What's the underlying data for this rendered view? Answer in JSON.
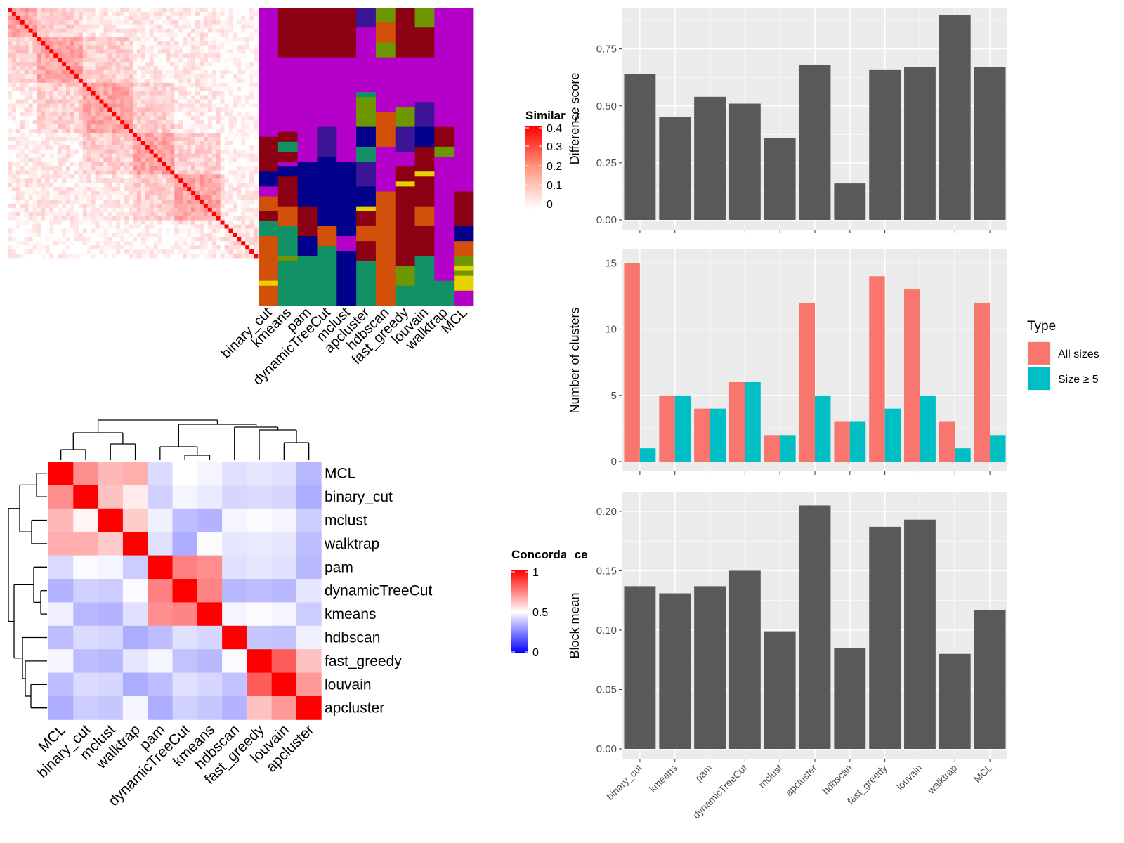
{
  "similarity_legend": {
    "title": "Similarity",
    "ticks": [
      "0.4",
      "0.3",
      "0.2",
      "0.1",
      "0"
    ],
    "colors": {
      "high": "#ff0000",
      "low": "#ffffff"
    }
  },
  "concordance_legend": {
    "title": "Concordance",
    "ticks": [
      "1",
      "0.5",
      "0"
    ],
    "colors": {
      "high": "#ff0000",
      "mid": "#ffffff",
      "low": "#0000ff"
    }
  },
  "method_columns": [
    "binary_cut",
    "kmeans",
    "pam",
    "dynamicTreeCut",
    "mclust",
    "apcluster",
    "hdbscan",
    "fast_greedy",
    "louvain",
    "walktrap",
    "MCL"
  ],
  "cluster_palette": [
    "#b400c8",
    "#8b0012",
    "#00008b",
    "#119164",
    "#d2500a",
    "#6e9600",
    "#e6d200",
    "#3c1496",
    "#a00064"
  ],
  "concordance_heatmap": {
    "rows": [
      "MCL",
      "binary_cut",
      "mclust",
      "walktrap",
      "pam",
      "dynamicTreeCut",
      "kmeans",
      "hdbscan",
      "fast_greedy",
      "louvain",
      "apcluster"
    ],
    "cols": [
      "MCL",
      "binary_cut",
      "mclust",
      "walktrap",
      "pam",
      "dynamicTreeCut",
      "kmeans",
      "hdbscan",
      "fast_greedy",
      "louvain",
      "apcluster"
    ]
  },
  "chart_data": [
    {
      "type": "bar",
      "categories": [
        "binary_cut",
        "kmeans",
        "pam",
        "dynamicTreeCut",
        "mclust",
        "apcluster",
        "hdbscan",
        "fast_greedy",
        "louvain",
        "walktrap",
        "MCL"
      ],
      "values": [
        0.64,
        0.45,
        0.54,
        0.51,
        0.36,
        0.68,
        0.16,
        0.66,
        0.67,
        0.9,
        0.67
      ],
      "ylabel": "Difference score",
      "ylim": [
        0,
        0.9
      ],
      "yticks": [
        "0.00",
        "0.25",
        "0.50",
        "0.75"
      ],
      "color": "#595959",
      "grid": true
    },
    {
      "type": "bar",
      "categories": [
        "binary_cut",
        "kmeans",
        "pam",
        "dynamicTreeCut",
        "mclust",
        "apcluster",
        "hdbscan",
        "fast_greedy",
        "louvain",
        "walktrap",
        "MCL"
      ],
      "series": [
        {
          "name": "All sizes",
          "values": [
            15,
            5,
            4,
            6,
            2,
            12,
            3,
            14,
            13,
            3,
            12
          ],
          "color": "#f8766d"
        },
        {
          "name": "Size ≥ 5",
          "values": [
            1,
            5,
            4,
            6,
            2,
            5,
            3,
            4,
            5,
            1,
            2
          ],
          "color": "#00bfc4"
        }
      ],
      "ylabel": "Number of clusters",
      "ylim": [
        0,
        15.5
      ],
      "yticks": [
        "0",
        "5",
        "10",
        "15"
      ],
      "legend_title": "Type",
      "legend_position": "right",
      "grid": true
    },
    {
      "type": "bar",
      "categories": [
        "binary_cut",
        "kmeans",
        "pam",
        "dynamicTreeCut",
        "mclust",
        "apcluster",
        "hdbscan",
        "fast_greedy",
        "louvain",
        "walktrap",
        "MCL"
      ],
      "values": [
        0.137,
        0.131,
        0.137,
        0.15,
        0.099,
        0.205,
        0.085,
        0.187,
        0.193,
        0.08,
        0.117
      ],
      "ylabel": "Block mean",
      "ylim": [
        0,
        0.21
      ],
      "yticks": [
        "0.00",
        "0.05",
        "0.10",
        "0.15",
        "0.20"
      ],
      "color": "#595959",
      "grid": true
    }
  ]
}
